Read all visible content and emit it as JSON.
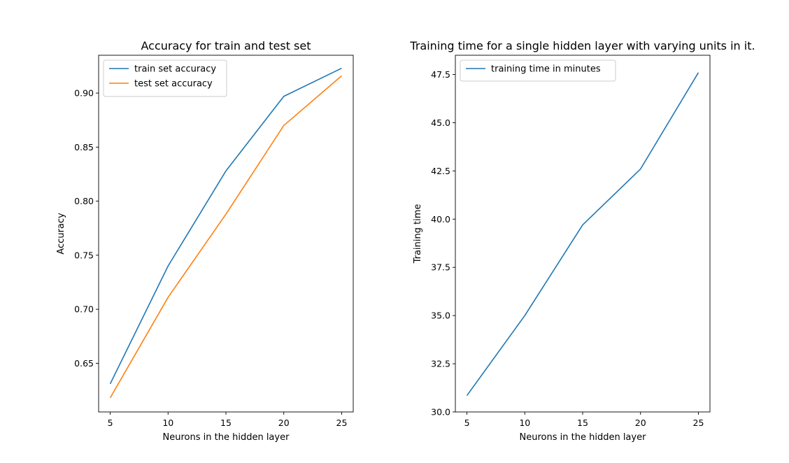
{
  "chart_data": [
    {
      "type": "line",
      "title": "Accuracy for train and test set",
      "xlabel": "Neurons in the hidden layer",
      "ylabel": "Accuracy",
      "x": [
        5,
        10,
        15,
        20,
        25
      ],
      "xticks": [
        "5",
        "10",
        "15",
        "20",
        "25"
      ],
      "yticks": [
        "0.65",
        "0.70",
        "0.75",
        "0.80",
        "0.85",
        "0.90"
      ],
      "ylim": [
        0.605,
        0.935
      ],
      "xlim": [
        4,
        26
      ],
      "legend_position": "upper-left",
      "series": [
        {
          "name": "train set accuracy",
          "values": [
            0.631,
            0.74,
            0.828,
            0.897,
            0.923
          ],
          "color": "#1f77b4"
        },
        {
          "name": "test set accuracy",
          "values": [
            0.618,
            0.711,
            0.788,
            0.87,
            0.916
          ],
          "color": "#ff7f0e"
        }
      ]
    },
    {
      "type": "line",
      "title": "Training time for a single hidden layer with varying units in it.",
      "xlabel": "Neurons in the hidden layer",
      "ylabel": "Training time",
      "x": [
        5,
        10,
        15,
        20,
        25
      ],
      "xticks": [
        "5",
        "10",
        "15",
        "20",
        "25"
      ],
      "yticks": [
        "30.0",
        "32.5",
        "35.0",
        "37.5",
        "40.0",
        "42.5",
        "45.0",
        "47.5"
      ],
      "ylim": [
        30.0,
        48.5
      ],
      "xlim": [
        4,
        26
      ],
      "legend_position": "upper-left",
      "series": [
        {
          "name": "training time in minutes",
          "values": [
            30.85,
            35.0,
            39.7,
            42.6,
            47.6
          ],
          "color": "#1f77b4"
        }
      ]
    }
  ]
}
